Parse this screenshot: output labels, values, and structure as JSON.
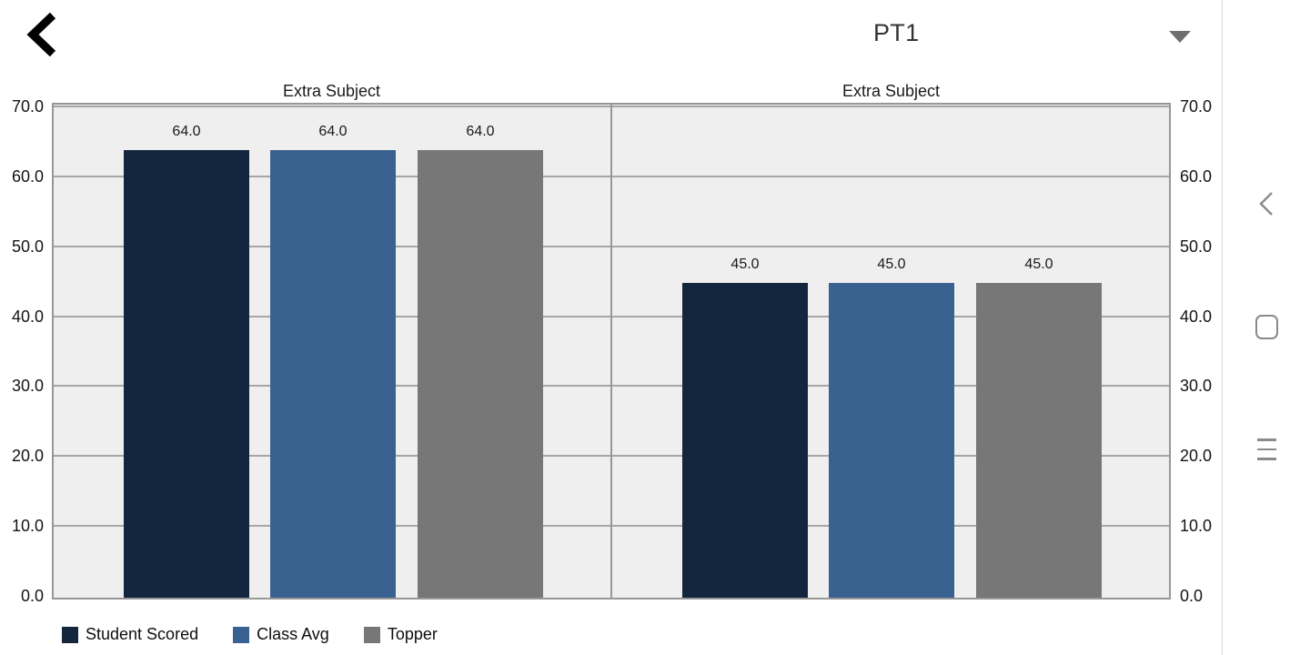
{
  "header": {
    "exam_selector_value": "PT1"
  },
  "charts": {
    "plot_background": "#efefef",
    "gridline_color": "#a6a6a6",
    "border_color": "#979797",
    "legend": [
      {
        "label": "Student Scored",
        "color": "#13263d"
      },
      {
        "label": "Class Avg",
        "color": "#3a6290"
      },
      {
        "label": "Topper",
        "color": "#777777"
      }
    ]
  },
  "chart_data": [
    {
      "type": "bar",
      "title": "Extra Subject",
      "categories": [
        "Student Scored",
        "Class Avg",
        "Topper"
      ],
      "values": [
        64.0,
        64.0,
        64.0
      ],
      "value_labels": [
        "64.0",
        "64.0",
        "64.0"
      ],
      "ylim": [
        0,
        70
      ],
      "ytick_labels_top_to_bottom": [
        "70.0",
        "60.0",
        "50.0",
        "40.0",
        "30.0",
        "20.0",
        "10.0",
        "0.0"
      ],
      "grid": true,
      "legend_position": "bottom-left"
    },
    {
      "type": "bar",
      "title": "Extra Subject",
      "categories": [
        "Student Scored",
        "Class Avg",
        "Topper"
      ],
      "values": [
        45.0,
        45.0,
        45.0
      ],
      "value_labels": [
        "45.0",
        "45.0",
        "45.0"
      ],
      "ylim": [
        0,
        70
      ],
      "ytick_labels_top_to_bottom": [
        "70.0",
        "60.0",
        "50.0",
        "40.0",
        "30.0",
        "20.0",
        "10.0",
        "0.0"
      ],
      "grid": true,
      "legend_position": "bottom-left"
    }
  ],
  "android_nav": {
    "back": "back",
    "home": "home",
    "recents": "recents"
  }
}
